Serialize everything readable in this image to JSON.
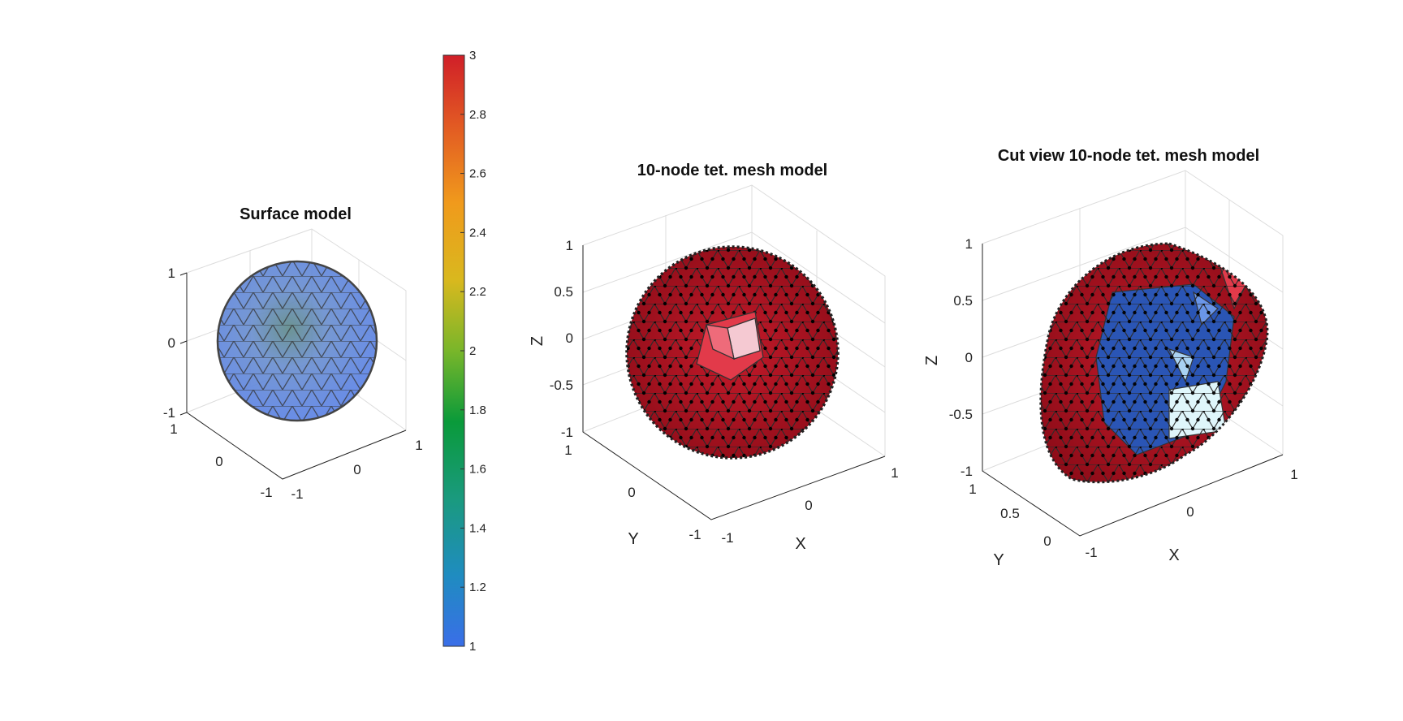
{
  "figure": {
    "panels": [
      {
        "id": "surface",
        "title": "Surface model",
        "z_ticks": [
          "1",
          "0",
          "-1"
        ],
        "y_ticks": [
          "1",
          "0",
          "-1"
        ],
        "x_ticks": [
          "-1",
          "0",
          "1"
        ],
        "xlabel": "",
        "ylabel": "",
        "zlabel": ""
      },
      {
        "id": "tet10",
        "title": "10-node tet. mesh model",
        "z_ticks": [
          "1",
          "0.5",
          "0",
          "-0.5",
          "-1"
        ],
        "y_ticks": [
          "1",
          "0",
          "-1"
        ],
        "x_ticks": [
          "-1",
          "0",
          "1"
        ],
        "xlabel": "X",
        "ylabel": "Y",
        "zlabel": "Z"
      },
      {
        "id": "cut",
        "title": "Cut view 10-node tet. mesh model",
        "z_ticks": [
          "1",
          "0.5",
          "0",
          "-0.5",
          "-1"
        ],
        "y_ticks": [
          "1",
          "0.5",
          "0"
        ],
        "x_ticks": [
          "-1",
          "0",
          "1"
        ],
        "xlabel": "X",
        "ylabel": "Y",
        "zlabel": "Z"
      }
    ],
    "colorbar": {
      "min": 1,
      "max": 3,
      "ticks": [
        "3",
        "2.8",
        "2.6",
        "2.4",
        "2.2",
        "2",
        "1.8",
        "1.6",
        "1.4",
        "1.2",
        "1"
      ],
      "colors": [
        "#3a6ee8",
        "#1f8cc0",
        "#1a9a7e",
        "#0a9a3a",
        "#79b62a",
        "#d9b81e",
        "#f09a1c",
        "#e25a23",
        "#d01f28"
      ]
    },
    "colors": {
      "surface_fill": "#5b82e6",
      "mesh_fill": "#a6101e",
      "inner_blue": "#2a55b5",
      "highlight": "#f5c9d2"
    }
  }
}
